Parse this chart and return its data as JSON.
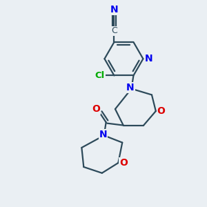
{
  "bg_color": "#eaeff3",
  "bond_color": "#2d4a5a",
  "bond_width": 1.6,
  "atom_colors": {
    "N": "#0000ee",
    "O": "#dd0000",
    "Cl": "#00aa00",
    "C": "#2d4a5a"
  },
  "font_size": 9.5,
  "figsize": [
    3.0,
    3.0
  ],
  "dpi": 100
}
